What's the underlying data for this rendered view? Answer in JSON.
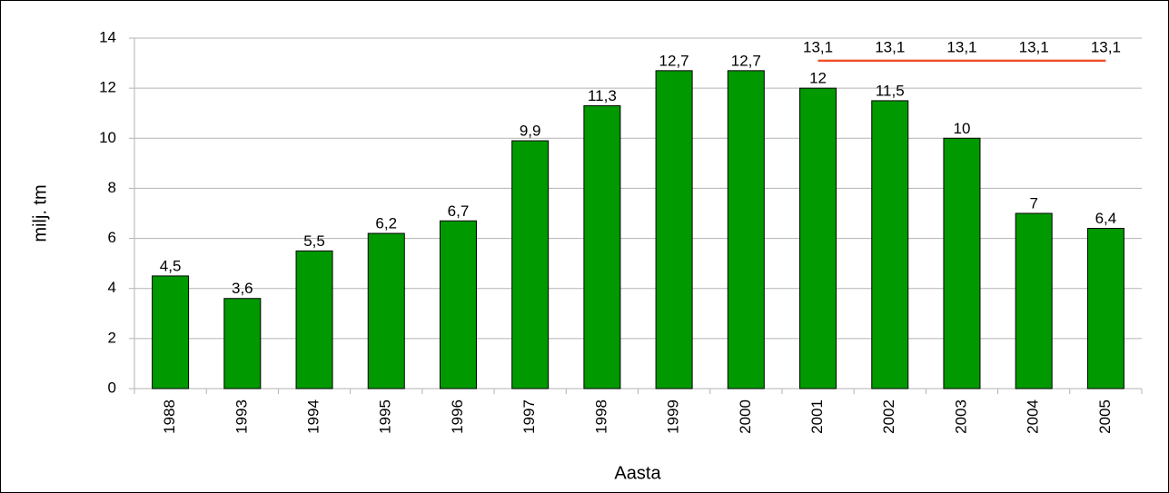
{
  "chart_data": {
    "type": "bar",
    "x_label": "Aasta",
    "y_label": "milj. tm",
    "categories": [
      "1988",
      "1993",
      "1994",
      "1995",
      "1996",
      "1997",
      "1998",
      "1999",
      "2000",
      "2001",
      "2002",
      "2003",
      "2004",
      "2005"
    ],
    "series": [
      {
        "type": "bar",
        "color": "#009900",
        "values": [
          4.5,
          3.6,
          5.5,
          6.2,
          6.7,
          9.9,
          11.3,
          12.7,
          12.7,
          12,
          11.5,
          10,
          7,
          6.4
        ],
        "value_labels": [
          "4,5",
          "3,6",
          "5,5",
          "6,2",
          "6,7",
          "9,9",
          "11,3",
          "12,7",
          "12,7",
          "12",
          "11,5",
          "10",
          "7",
          "6,4"
        ]
      },
      {
        "type": "line",
        "color": "#f0502a",
        "values": [
          null,
          null,
          null,
          null,
          null,
          null,
          null,
          null,
          null,
          13.1,
          13.1,
          13.1,
          13.1,
          13.1
        ],
        "value_labels": [
          null,
          null,
          null,
          null,
          null,
          null,
          null,
          null,
          null,
          "13,1",
          "13,1",
          "13,1",
          "13,1",
          "13,1"
        ]
      }
    ],
    "ylim": [
      0,
      14
    ],
    "yticks": [
      0,
      2,
      4,
      6,
      8,
      10,
      12,
      14
    ],
    "grid": true
  }
}
